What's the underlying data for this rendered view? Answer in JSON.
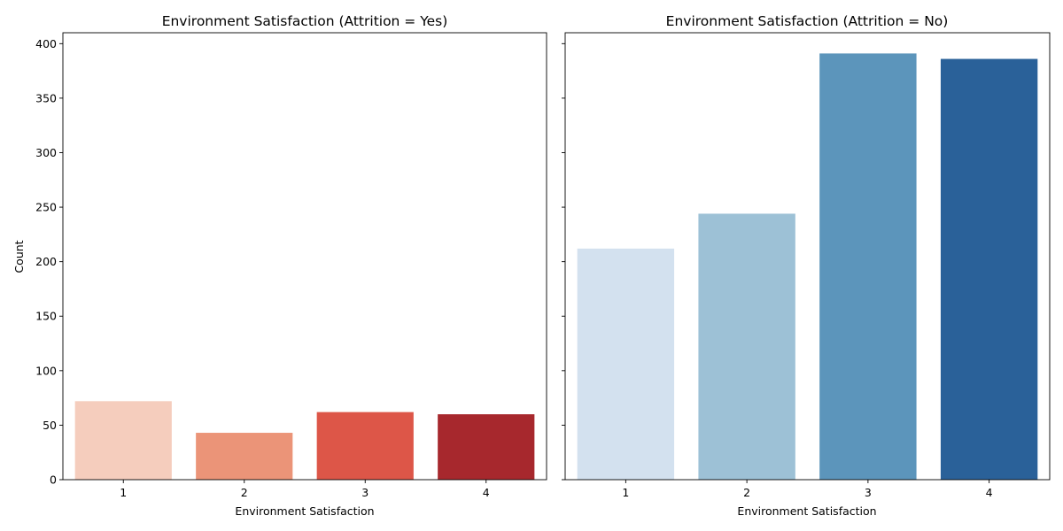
{
  "chart_data": [
    {
      "type": "bar",
      "title": "Environment Satisfaction (Attrition = Yes)",
      "xlabel": "Environment Satisfaction",
      "ylabel": "Count",
      "categories": [
        "1",
        "2",
        "3",
        "4"
      ],
      "values": [
        72,
        43,
        62,
        60
      ],
      "colors": [
        "#f5cdbd",
        "#eb9478",
        "#dd5648",
        "#a7282d"
      ],
      "ylim": [
        0,
        410
      ],
      "yticks": [
        0,
        50,
        100,
        150,
        200,
        250,
        300,
        350,
        400
      ],
      "show_ytick_labels": true,
      "grid": false
    },
    {
      "type": "bar",
      "title": "Environment Satisfaction (Attrition = No)",
      "xlabel": "Environment Satisfaction",
      "ylabel": "",
      "categories": [
        "1",
        "2",
        "3",
        "4"
      ],
      "values": [
        212,
        244,
        391,
        386
      ],
      "colors": [
        "#d3e1ef",
        "#9dc1d6",
        "#5c95bb",
        "#2a6199"
      ],
      "ylim": [
        0,
        410
      ],
      "yticks": [
        0,
        50,
        100,
        150,
        200,
        250,
        300,
        350,
        400
      ],
      "show_ytick_labels": false,
      "grid": false
    }
  ]
}
